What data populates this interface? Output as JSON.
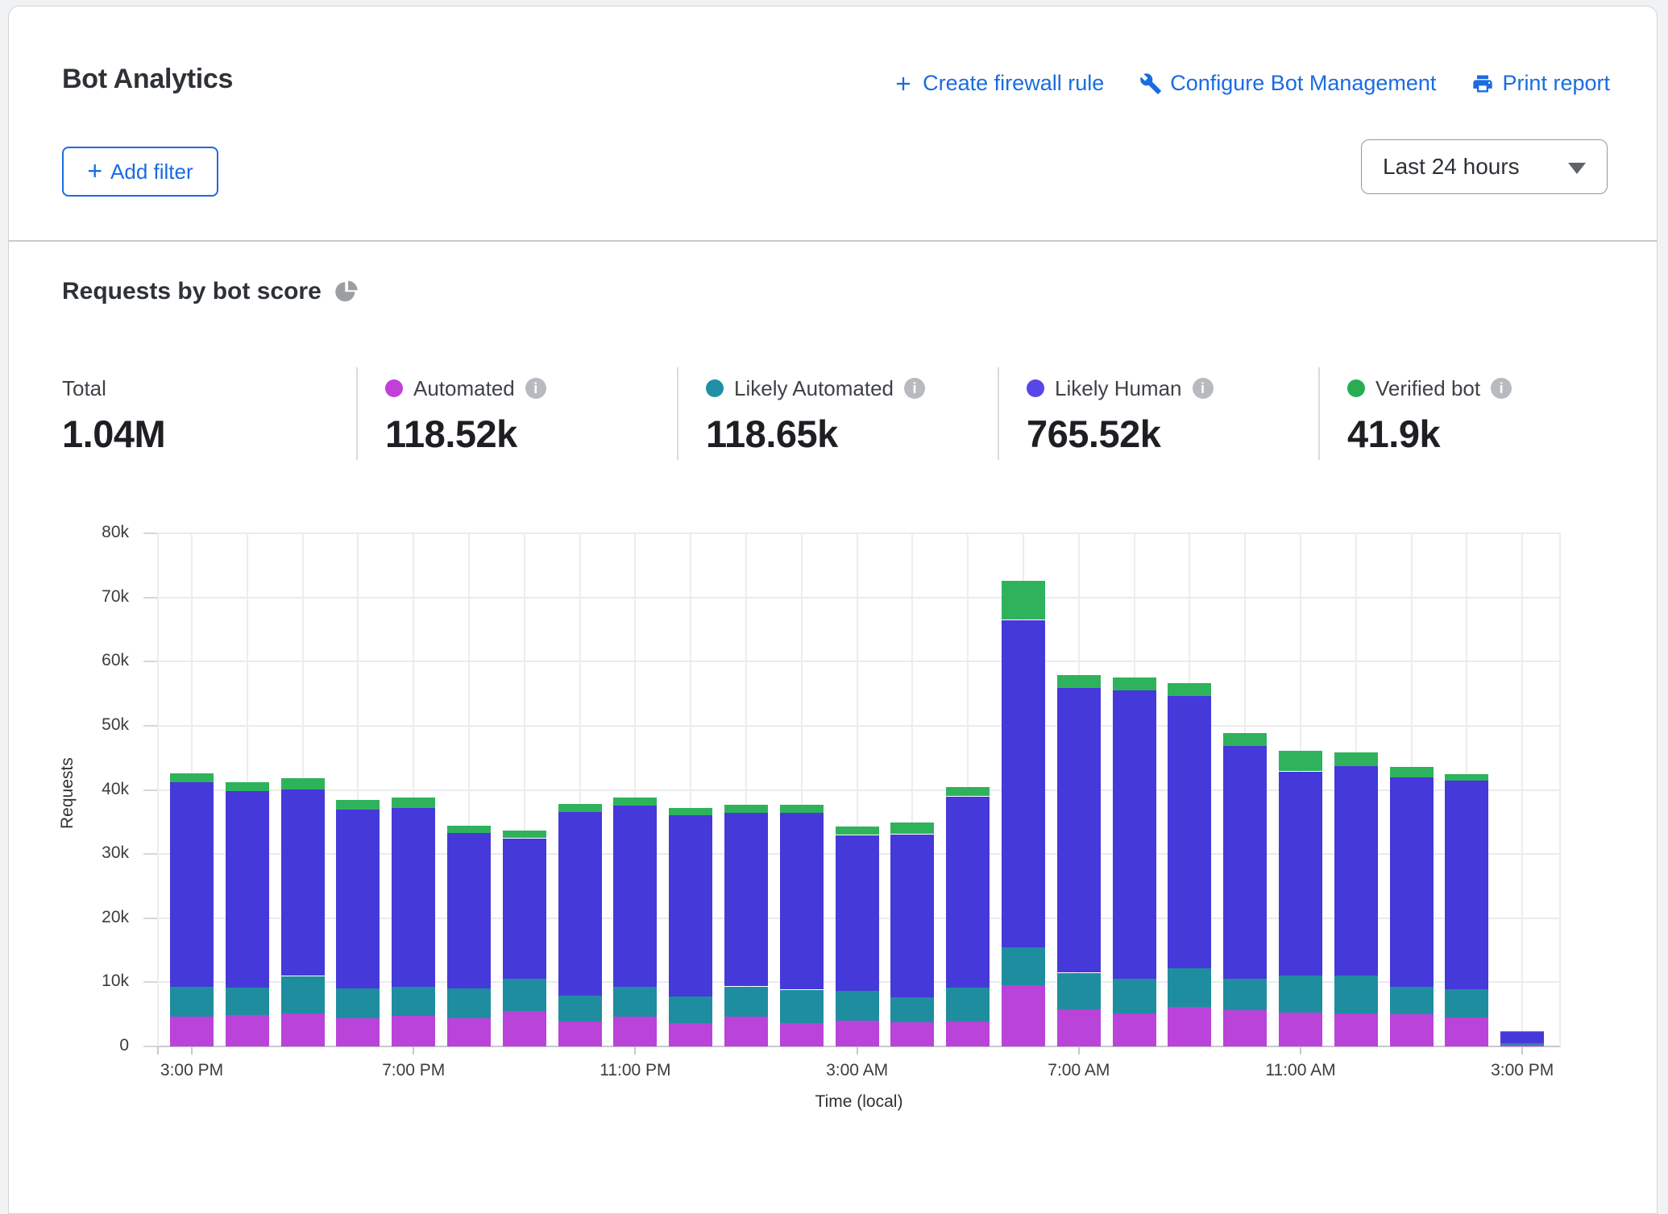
{
  "header": {
    "title": "Bot Analytics",
    "actions": [
      {
        "icon": "plus-icon",
        "label": "Create firewall rule"
      },
      {
        "icon": "wrench-icon",
        "label": "Configure Bot Management"
      },
      {
        "icon": "printer-icon",
        "label": "Print report"
      }
    ],
    "add_filter_label": "Add filter",
    "time_range_value": "Last 24 hours"
  },
  "section": {
    "title": "Requests by bot score"
  },
  "stats": [
    {
      "label": "Total",
      "value": "1.04M"
    },
    {
      "label": "Automated",
      "value": "118.52k",
      "color": "#c13fdb"
    },
    {
      "label": "Likely Automated",
      "value": "118.65k",
      "color": "#1f90a6"
    },
    {
      "label": "Likely Human",
      "value": "765.52k",
      "color": "#5846e8"
    },
    {
      "label": "Verified bot",
      "value": "41.9k",
      "color": "#27ae55"
    }
  ],
  "chart_data": {
    "type": "bar",
    "stacked": true,
    "title": "Requests by bot score",
    "xlabel": "Time (local)",
    "ylabel": "Requests",
    "unit": "thousands of requests per hour",
    "ylim_k": [
      0,
      80
    ],
    "grid": true,
    "legend_position": "stats row above chart",
    "categories": [
      "3:00 PM",
      "4:00 PM",
      "5:00 PM",
      "6:00 PM",
      "7:00 PM",
      "8:00 PM",
      "9:00 PM",
      "10:00 PM",
      "11:00 PM",
      "12:00 AM",
      "1:00 AM",
      "2:00 AM",
      "3:00 AM",
      "4:00 AM",
      "5:00 AM",
      "6:00 AM",
      "7:00 AM",
      "8:00 AM",
      "9:00 AM",
      "10:00 AM",
      "11:00 AM",
      "12:00 PM",
      "1:00 PM",
      "2:00 PM",
      "3:00 PM"
    ],
    "series": [
      {
        "name": "Automated",
        "color": "#ba43d9",
        "values": [
          4.6,
          4.9,
          5.2,
          4.4,
          4.8,
          4.4,
          5.5,
          3.9,
          4.7,
          3.6,
          4.7,
          3.7,
          4.0,
          3.8,
          3.9,
          9.5,
          5.8,
          5.1,
          6.2,
          5.6,
          5.3,
          5.2,
          5.0,
          4.5,
          0.25
        ]
      },
      {
        "name": "Likely Automated",
        "color": "#1f8da0",
        "values": [
          4.7,
          4.3,
          5.8,
          4.6,
          4.5,
          4.6,
          5.1,
          4.0,
          4.6,
          4.2,
          4.7,
          5.2,
          4.7,
          3.9,
          5.3,
          6.0,
          5.7,
          5.4,
          6.0,
          5.0,
          5.8,
          5.9,
          4.3,
          4.4,
          0.2
        ]
      },
      {
        "name": "Likely Human",
        "color": "#4639d9",
        "values": [
          31.9,
          30.6,
          29.1,
          27.9,
          27.9,
          24.3,
          21.9,
          28.7,
          28.3,
          28.2,
          27.0,
          27.5,
          24.3,
          25.4,
          29.8,
          51.0,
          44.4,
          45.0,
          42.4,
          36.3,
          31.8,
          32.6,
          32.6,
          32.5,
          1.85
        ]
      },
      {
        "name": "Verified bot",
        "color": "#2eb35c",
        "values": [
          1.4,
          1.4,
          1.7,
          1.5,
          1.6,
          1.1,
          1.1,
          1.2,
          1.3,
          1.1,
          1.3,
          1.2,
          1.3,
          1.7,
          1.4,
          6.0,
          2.0,
          2.0,
          2.0,
          2.0,
          3.1,
          2.1,
          1.6,
          1.0,
          0.05
        ]
      }
    ],
    "y_ticks": [
      {
        "v": 0,
        "label": "0"
      },
      {
        "v": 10,
        "label": "10k"
      },
      {
        "v": 20,
        "label": "20k"
      },
      {
        "v": 30,
        "label": "30k"
      },
      {
        "v": 40,
        "label": "40k"
      },
      {
        "v": 50,
        "label": "50k"
      },
      {
        "v": 60,
        "label": "60k"
      },
      {
        "v": 70,
        "label": "70k"
      },
      {
        "v": 80,
        "label": "80k"
      }
    ],
    "x_ticks": [
      {
        "index": 0,
        "label": "3:00 PM"
      },
      {
        "index": 4,
        "label": "7:00 PM"
      },
      {
        "index": 8,
        "label": "11:00 PM"
      },
      {
        "index": 12,
        "label": "3:00 AM"
      },
      {
        "index": 16,
        "label": "7:00 AM"
      },
      {
        "index": 20,
        "label": "11:00 AM"
      },
      {
        "index": 24,
        "label": "3:00 PM"
      }
    ]
  }
}
